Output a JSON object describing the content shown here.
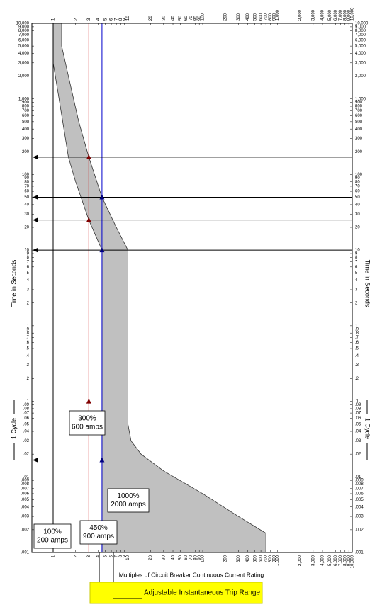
{
  "chart_data": {
    "type": "line",
    "xlabel": "Multiples of Circuit Breaker Continuous Current Rating",
    "ylabel": "Time in Seconds",
    "cycle_label": "1 Cycle",
    "range_label": "Adjustable Instantaneous Trip Range",
    "xscale": "log",
    "yscale": "log",
    "grid": false,
    "xlim": [
      1,
      10000
    ],
    "ylim": [
      0.001,
      10000
    ],
    "xticks": [
      1,
      2,
      3,
      4,
      5,
      6,
      7,
      8,
      9,
      10,
      20,
      30,
      40,
      50,
      60,
      70,
      80,
      90,
      100,
      200,
      300,
      400,
      500,
      600,
      700,
      800,
      900,
      {
        "value": 1000,
        "label": "1,000"
      },
      {
        "value": 2000,
        "label": "2,000"
      },
      {
        "value": 3000,
        "label": "3,000"
      },
      {
        "value": 4000,
        "label": "4,000"
      },
      {
        "value": 5000,
        "label": "5,000"
      },
      {
        "value": 6000,
        "label": "6,000"
      },
      {
        "value": 7000,
        "label": "7,000"
      },
      {
        "value": 8000,
        "label": "8,000"
      },
      {
        "value": 9000,
        "label": "9,000"
      },
      {
        "value": 10000,
        "label": "10,000"
      }
    ],
    "yticks": [
      {
        "value": 0.001,
        "label": ".001"
      },
      {
        "value": 0.002,
        "label": ".002"
      },
      {
        "value": 0.003,
        "label": ".003"
      },
      {
        "value": 0.004,
        "label": ".004"
      },
      {
        "value": 0.005,
        "label": ".005"
      },
      {
        "value": 0.006,
        "label": ".006"
      },
      {
        "value": 0.007,
        "label": ".007"
      },
      {
        "value": 0.008,
        "label": ".008"
      },
      {
        "value": 0.009,
        "label": ".009"
      },
      {
        "value": 0.01,
        "label": ".01"
      },
      {
        "value": 0.02,
        "label": ".02"
      },
      {
        "value": 0.03,
        "label": ".03"
      },
      {
        "value": 0.04,
        "label": ".04"
      },
      {
        "value": 0.05,
        "label": ".05"
      },
      {
        "value": 0.06,
        "label": ".06"
      },
      {
        "value": 0.07,
        "label": ".07"
      },
      {
        "value": 0.08,
        "label": ".08"
      },
      {
        "value": 0.09,
        "label": ".09"
      },
      {
        "value": 0.1,
        "label": ".1"
      },
      {
        "value": 0.2,
        "label": ".2"
      },
      {
        "value": 0.3,
        "label": ".3"
      },
      {
        "value": 0.4,
        "label": ".4"
      },
      {
        "value": 0.5,
        "label": ".5"
      },
      {
        "value": 0.6,
        "label": ".6"
      },
      {
        "value": 0.7,
        "label": ".7"
      },
      {
        "value": 0.8,
        "label": ".8"
      },
      {
        "value": 0.9,
        "label": ".9"
      },
      1,
      2,
      3,
      4,
      5,
      6,
      7,
      8,
      9,
      10,
      20,
      30,
      40,
      50,
      60,
      70,
      80,
      90,
      100,
      200,
      300,
      400,
      500,
      600,
      700,
      800,
      900,
      {
        "value": 1000,
        "label": "1,000"
      },
      {
        "value": 2000,
        "label": "2,000"
      },
      {
        "value": 3000,
        "label": "3,000"
      },
      {
        "value": 4000,
        "label": "4,000"
      },
      {
        "value": 5000,
        "label": "5,000"
      },
      {
        "value": 6000,
        "label": "6,000"
      },
      {
        "value": 7000,
        "label": "7,000"
      },
      {
        "value": 8000,
        "label": "8,000"
      },
      {
        "value": 9000,
        "label": "9,000"
      },
      {
        "value": 10000,
        "label": "10,000"
      }
    ],
    "fill_color": "#c0c0c0",
    "series": [
      {
        "color": "#333333",
        "x": [
          1,
          1,
          1.2,
          1.6,
          2,
          3,
          4.5,
          4.5
        ],
        "values": [
          10000,
          3000,
          1000,
          170,
          80,
          25,
          10,
          0.001
        ]
      },
      {
        "color": "#333333",
        "x": [
          1.3,
          1.3,
          1.6,
          2.2,
          3,
          4.5,
          7,
          10,
          10,
          11,
          15,
          30,
          100,
          300,
          700,
          700
        ],
        "values": [
          10000,
          5000,
          2000,
          500,
          170,
          50,
          20,
          10,
          0.05,
          0.03,
          0.02,
          0.012,
          0.006,
          0.003,
          0.0018,
          0.001
        ]
      }
    ],
    "vlines": [
      {
        "x": 1,
        "color": "#000000"
      },
      {
        "x": 3,
        "color": "#cc0000"
      },
      {
        "x": 4.5,
        "color": "#0000cc"
      },
      {
        "x": 10,
        "color": "#000000"
      }
    ],
    "hlines": [
      170,
      50,
      25,
      10,
      0.0167
    ],
    "markers": [
      {
        "x": 3,
        "y": 170,
        "color": "#800000"
      },
      {
        "x": 3,
        "y": 25,
        "color": "#800000"
      },
      {
        "x": 3,
        "y": 0.1,
        "color": "#800000"
      },
      {
        "x": 4.5,
        "y": 50,
        "color": "#000080"
      },
      {
        "x": 4.5,
        "y": 10,
        "color": "#000080"
      },
      {
        "x": 4.5,
        "y": 0.0167,
        "color": "#000080"
      }
    ],
    "annotations": [
      {
        "lines": [
          "300%",
          "600 amps"
        ]
      },
      {
        "lines": [
          "1000%",
          "2000 amps"
        ]
      },
      {
        "lines": [
          "100%",
          "200 amps"
        ]
      },
      {
        "lines": [
          "450%",
          "900 amps"
        ]
      }
    ]
  }
}
